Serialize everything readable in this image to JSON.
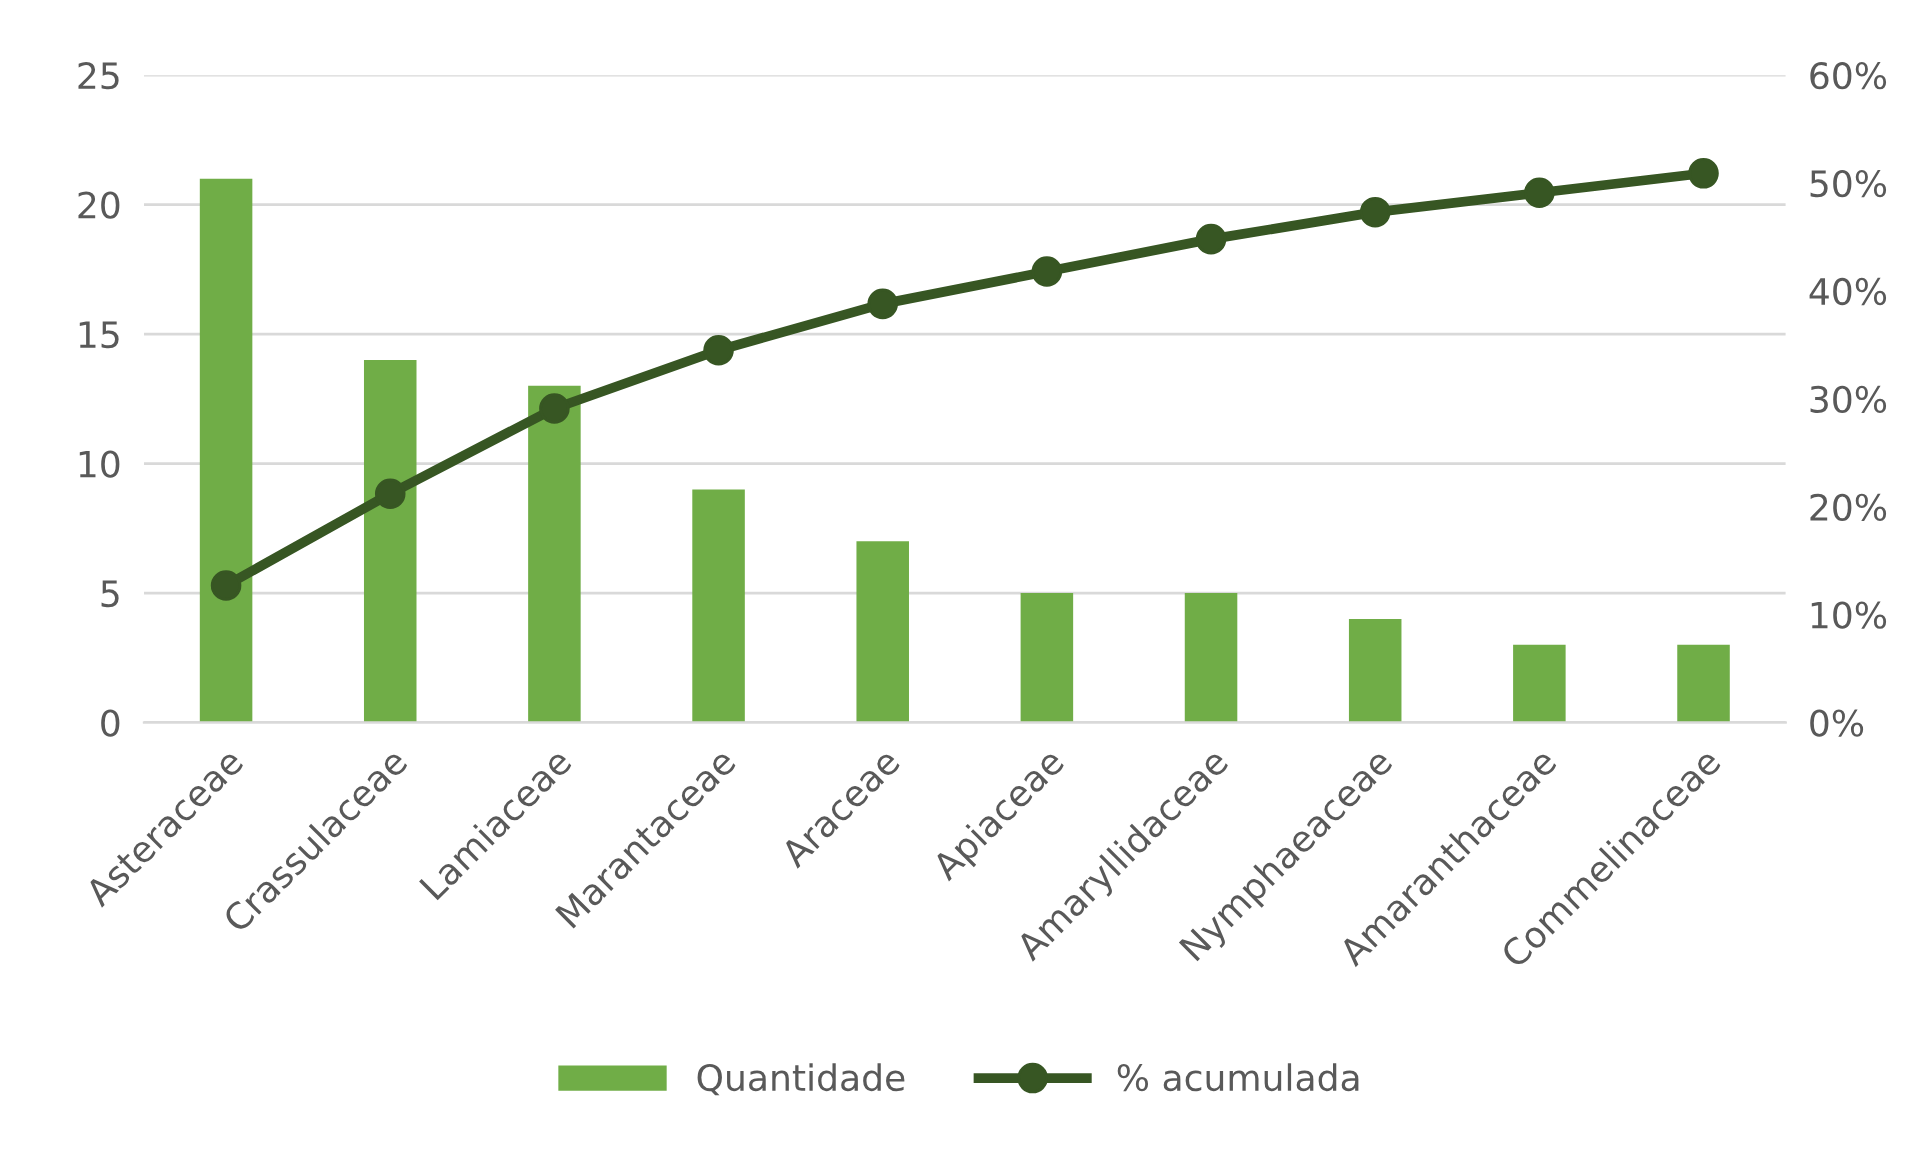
{
  "chart_data": {
    "type": "bar",
    "categories": [
      "Asteraceae",
      "Crassulaceae",
      "Lamiaceae",
      "Marantaceae",
      "Araceae",
      "Apiaceae",
      "Amaryllidaceae",
      "Nymphaeaceae",
      "Amaranthaceae",
      "Commelinaceae"
    ],
    "series": [
      {
        "name": "Quantidade",
        "color": "#70ad47",
        "values": [
          21,
          14,
          13,
          9,
          7,
          5,
          5,
          4,
          3,
          3
        ]
      },
      {
        "name": "% acumulada",
        "type": "line",
        "axis": "y2",
        "color": "#375623",
        "marker": "circle",
        "values": [
          12.7,
          21.2,
          29.1,
          34.5,
          38.8,
          41.8,
          44.8,
          47.3,
          49.1,
          50.9
        ]
      }
    ],
    "ylim": [
      0,
      25
    ],
    "yticks": [
      0,
      5,
      10,
      15,
      20,
      25
    ],
    "y2lim": [
      0,
      60
    ],
    "y2ticks": [
      {
        "value": 0,
        "label": "0%"
      },
      {
        "value": 10,
        "label": "10%"
      },
      {
        "value": 20,
        "label": "20%"
      },
      {
        "value": 30,
        "label": "30%"
      },
      {
        "value": 40,
        "label": "40%"
      },
      {
        "value": 50,
        "label": "50%"
      },
      {
        "value": 60,
        "label": "60%"
      }
    ],
    "grid": "y",
    "legend": "bottom"
  }
}
